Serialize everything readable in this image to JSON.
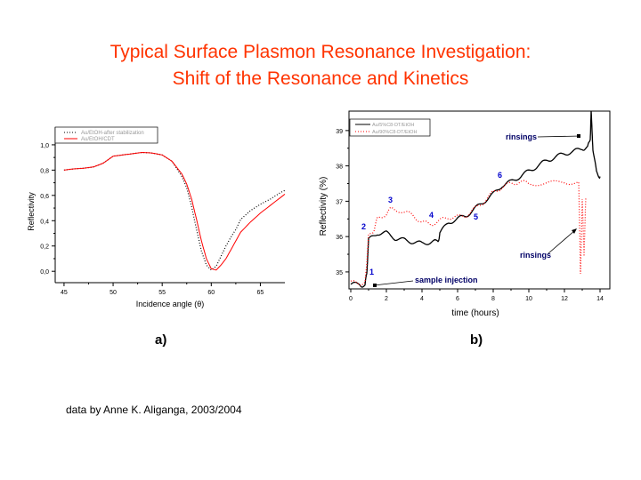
{
  "slide": {
    "title_line1": "Typical Surface Plasmon Resonance Investigation:",
    "title_line2": "Shift of the Resonance and Kinetics",
    "label_a": "a)",
    "label_b": "b)",
    "credit": "data by Anne K. Aliganga, 2003/2004",
    "title_color": "#ff3300"
  },
  "chart_data": [
    {
      "type": "line",
      "xlabel": "Incidence angle (θ)",
      "ylabel": "Reflectivity",
      "xlim": [
        44.1,
        67.5
      ],
      "ylim": [
        -0.09,
        1.14
      ],
      "xticks": [
        45,
        50,
        55,
        60,
        65
      ],
      "yticks": [
        "0,0",
        "0,2",
        "0,4",
        "0,6",
        "0,8",
        "1,0"
      ],
      "ytick_values": [
        0,
        0.2,
        0.4,
        0.6,
        0.8,
        1.0
      ],
      "legend": "top-left",
      "series": [
        {
          "name": "Au/EtOH-after stabilization",
          "style": "dotted",
          "color": "#000000",
          "x": [
            45,
            46,
            47,
            48,
            49,
            50,
            51,
            52,
            53,
            54,
            55,
            56,
            57,
            57.5,
            58,
            58.5,
            59,
            59.5,
            60,
            60.5,
            61,
            61.5,
            62,
            62.5,
            63,
            64,
            65,
            66,
            67,
            67.5
          ],
          "y": [
            0.8,
            0.81,
            0.815,
            0.825,
            0.855,
            0.91,
            0.92,
            0.93,
            0.94,
            0.935,
            0.92,
            0.87,
            0.75,
            0.66,
            0.51,
            0.33,
            0.16,
            0.05,
            0.01,
            0.04,
            0.12,
            0.2,
            0.27,
            0.33,
            0.41,
            0.48,
            0.53,
            0.57,
            0.62,
            0.64
          ]
        },
        {
          "name": "Au/EtOH/CDT",
          "style": "solid",
          "color": "#ff0000",
          "x": [
            45,
            46,
            47,
            48,
            49,
            50,
            51,
            52,
            53,
            54,
            55,
            56,
            57,
            57.5,
            58,
            58.5,
            59,
            59.5,
            60,
            60.5,
            61,
            61.5,
            62,
            62.5,
            63,
            64,
            65,
            66,
            67,
            67.5
          ],
          "y": [
            0.8,
            0.81,
            0.815,
            0.825,
            0.855,
            0.91,
            0.92,
            0.93,
            0.94,
            0.935,
            0.92,
            0.87,
            0.77,
            0.69,
            0.57,
            0.41,
            0.24,
            0.1,
            0.02,
            0.01,
            0.05,
            0.1,
            0.17,
            0.24,
            0.31,
            0.39,
            0.46,
            0.52,
            0.58,
            0.61
          ]
        }
      ]
    },
    {
      "type": "line",
      "xlabel": "time (hours)",
      "ylabel": "Reflectivity (%)",
      "xlim": [
        -0.1,
        14.55
      ],
      "ylim": [
        34.52,
        39.55
      ],
      "xticks": [
        0,
        2,
        4,
        6,
        8,
        10,
        12,
        14
      ],
      "yticks": [
        "35",
        "36",
        "37",
        "38",
        "39"
      ],
      "ytick_values": [
        35,
        36,
        37,
        38,
        39
      ],
      "legend": "top-left",
      "series": [
        {
          "name": "Au/5%C8-DT/EtOH",
          "style": "solid",
          "color": "#000000",
          "x": [
            0,
            0.5,
            0.8,
            0.9,
            1.0,
            1.5,
            2,
            2.5,
            3,
            3.5,
            4,
            4.5,
            4.9,
            5.0,
            5.5,
            6,
            6.5,
            7,
            7.5,
            8,
            8.5,
            9,
            9.5,
            10,
            10.5,
            11,
            11.5,
            12,
            12.5,
            13,
            13.3,
            13.45,
            13.5,
            13.6,
            13.8,
            14
          ],
          "y": [
            34.65,
            34.65,
            34.6,
            35.0,
            35.9,
            36.1,
            36.1,
            35.95,
            35.9,
            35.85,
            35.8,
            35.85,
            35.85,
            36.1,
            36.4,
            36.5,
            36.6,
            36.8,
            37.0,
            37.2,
            37.45,
            37.55,
            37.7,
            37.85,
            38.0,
            38.15,
            38.25,
            38.35,
            38.4,
            38.5,
            38.5,
            38.8,
            39.5,
            38.5,
            37.8,
            37.7
          ]
        },
        {
          "name": "Au/90%C8-DT/EtOH",
          "style": "dotted",
          "color": "#ff0000",
          "x": [
            0,
            0.5,
            0.8,
            0.9,
            1.0,
            1.3,
            1.5,
            2,
            2.3,
            3,
            3.5,
            4,
            4.5,
            5,
            5.5,
            6,
            6.5,
            7,
            7.5,
            8,
            8.5,
            9,
            9.5,
            10,
            11,
            12,
            12.8,
            12.9,
            13.0,
            13.1,
            13.2
          ],
          "y": [
            34.7,
            34.68,
            34.65,
            35.3,
            36.0,
            36.2,
            36.5,
            36.65,
            36.8,
            36.7,
            36.6,
            36.4,
            36.35,
            36.45,
            36.55,
            36.55,
            36.6,
            36.8,
            37.0,
            37.25,
            37.4,
            37.5,
            37.55,
            37.5,
            37.5,
            37.55,
            37.5,
            35.0,
            37.0,
            35.5,
            37.1
          ]
        }
      ],
      "annotations": {
        "n1": "1",
        "n2": "2",
        "n3": "3",
        "n4": "4",
        "n5": "5",
        "n6": "6",
        "rinsings_top": "rinsings",
        "rinsings_bottom": "rinsings",
        "sample_injection": "sample injection",
        "number_color": "#0000cc",
        "text_color": "#000066"
      }
    }
  ]
}
